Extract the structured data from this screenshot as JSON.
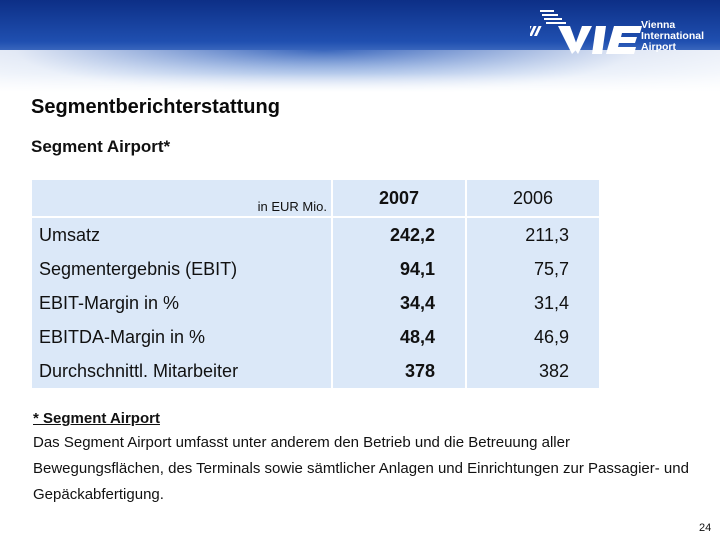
{
  "logo": {
    "brand_icon": "vie-logo",
    "lines": [
      "Vienna",
      "International",
      "Airport"
    ]
  },
  "title": "Segmentberichterstattung",
  "subtitle": "Segment Airport*",
  "table": {
    "unit_label": "in EUR Mio.",
    "columns": [
      "2007",
      "2006"
    ],
    "rows": [
      {
        "label": "Umsatz",
        "v2007": "242,2",
        "v2006": "211,3"
      },
      {
        "label": "Segmentergebnis (EBIT)",
        "v2007": "94,1",
        "v2006": "75,7"
      },
      {
        "label": "EBIT-Margin in %",
        "v2007": "34,4",
        "v2006": "31,4"
      },
      {
        "label": "EBITDA-Margin in %",
        "v2007": "48,4",
        "v2006": "46,9"
      },
      {
        "label": "Durchschnittl. Mitarbeiter",
        "v2007": "378",
        "v2006": "382"
      }
    ]
  },
  "footnote": {
    "heading": "* Segment Airport",
    "text": "Das Segment Airport umfasst unter anderem den Betrieb und die Betreuung aller Bewegungsflächen, des Terminals sowie sämtlicher Anlagen und Einrichtungen zur Passagier- und Gepäckabfertigung."
  },
  "page_number": "24",
  "colors": {
    "header_blue": "#1f4fb0",
    "table_fill": "#dbe8f8"
  }
}
